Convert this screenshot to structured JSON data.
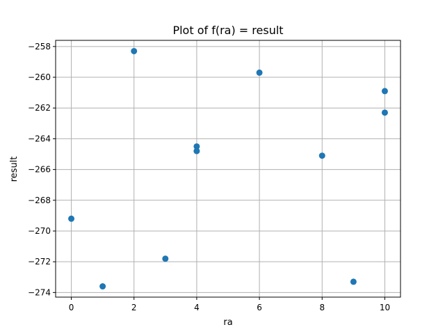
{
  "chart_data": {
    "type": "scatter",
    "title": "Plot of f(ra) = result",
    "xlabel": "ra",
    "ylabel": "result",
    "xlim": [
      -0.5,
      10.5
    ],
    "ylim": [
      -274.3,
      -257.6
    ],
    "xticks": [
      0,
      2,
      4,
      6,
      8,
      10
    ],
    "yticks": [
      -274,
      -272,
      -270,
      -268,
      -266,
      -264,
      -262,
      -260,
      -258
    ],
    "grid": true,
    "color": "#1f77b4",
    "points": [
      {
        "x": 0,
        "y": -269.2
      },
      {
        "x": 1,
        "y": -273.6
      },
      {
        "x": 2,
        "y": -258.3
      },
      {
        "x": 3,
        "y": -271.8
      },
      {
        "x": 4,
        "y": -264.5
      },
      {
        "x": 4,
        "y": -264.8
      },
      {
        "x": 6,
        "y": -259.7
      },
      {
        "x": 8,
        "y": -265.1
      },
      {
        "x": 9,
        "y": -273.3
      },
      {
        "x": 10,
        "y": -260.9
      },
      {
        "x": 10,
        "y": -262.3
      }
    ]
  }
}
